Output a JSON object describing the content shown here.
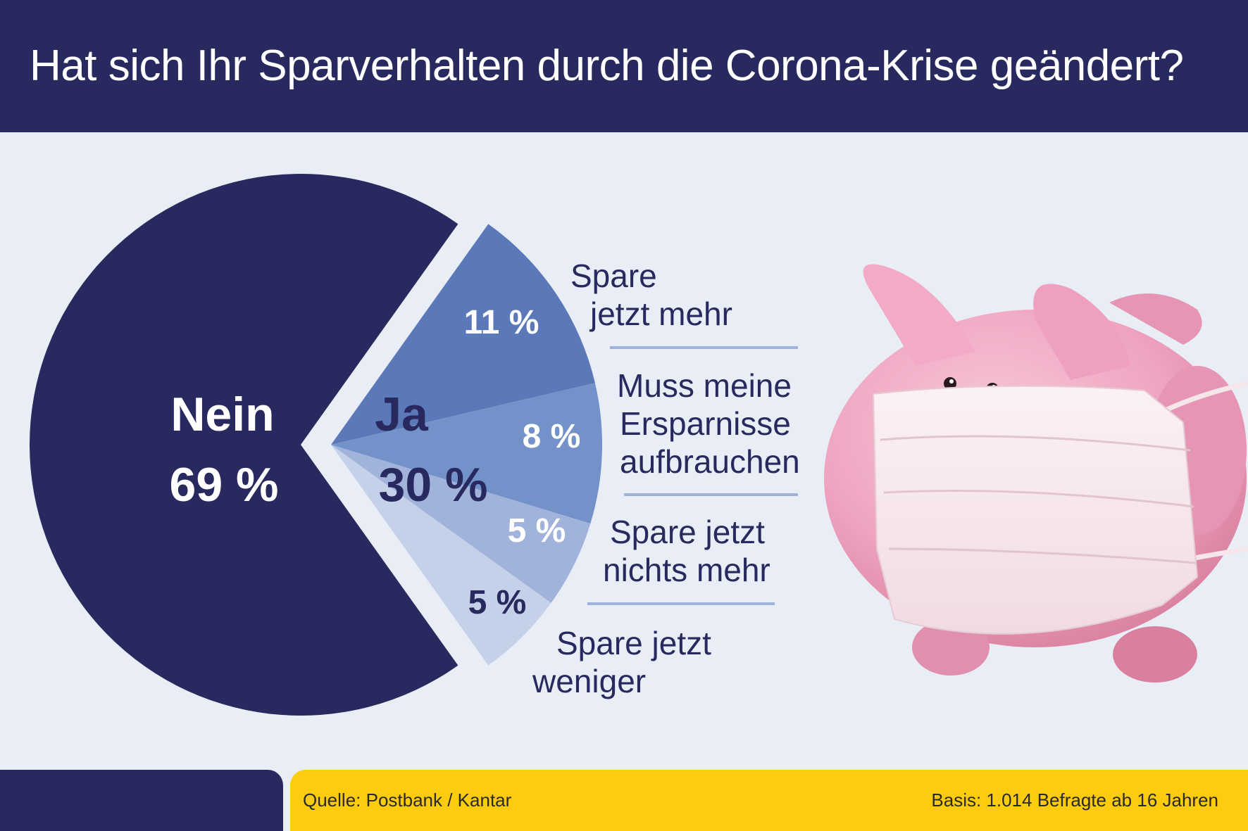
{
  "header": {
    "title": "Hat sich Ihr Sparverhalten durch die Corona-Krise geändert?"
  },
  "chart_data": {
    "type": "pie",
    "title": "Hat sich Ihr Sparverhalten durch die Corona-Krise geändert?",
    "unit": "%",
    "main_slices": [
      {
        "name": "Nein",
        "value": 69,
        "label": "69 %",
        "color": "#282a5f"
      },
      {
        "name": "Ja",
        "value": 30,
        "label": "30 %",
        "color": "#5b79b8"
      }
    ],
    "breakdown": [
      {
        "name": "Spare jetzt mehr",
        "lines": [
          "Spare",
          "jetzt mehr"
        ],
        "value": 11,
        "label": "11 %",
        "color": "#5b79b8"
      },
      {
        "name": "Muss meine Ersparnisse aufbrauchen",
        "lines": [
          "Muss meine",
          "Ersparnisse",
          "aufbrauchen"
        ],
        "value": 8,
        "label": "8 %",
        "color": "#7292c9"
      },
      {
        "name": "Spare jetzt nichts mehr",
        "lines": [
          "Spare jetzt",
          "nichts mehr"
        ],
        "value": 5,
        "label": "5 %",
        "color": "#a1b3da"
      },
      {
        "name": "Spare jetzt weniger",
        "lines": [
          "Spare jetzt",
          "weniger"
        ],
        "value": 5,
        "label": "5 %",
        "color": "#c5d1e8"
      }
    ]
  },
  "colors": {
    "navy": "#282a5f",
    "background": "#e9eef6",
    "footer_yellow": "#fdcc0f",
    "divider": "#9fb2da",
    "label_light": "#ffffff"
  },
  "illustration": {
    "icon": "piggy-bank-with-face-mask-icon"
  },
  "footer": {
    "source": "Quelle: Postbank / Kantar",
    "basis": "Basis: 1.014 Befragte ab 16 Jahren"
  }
}
